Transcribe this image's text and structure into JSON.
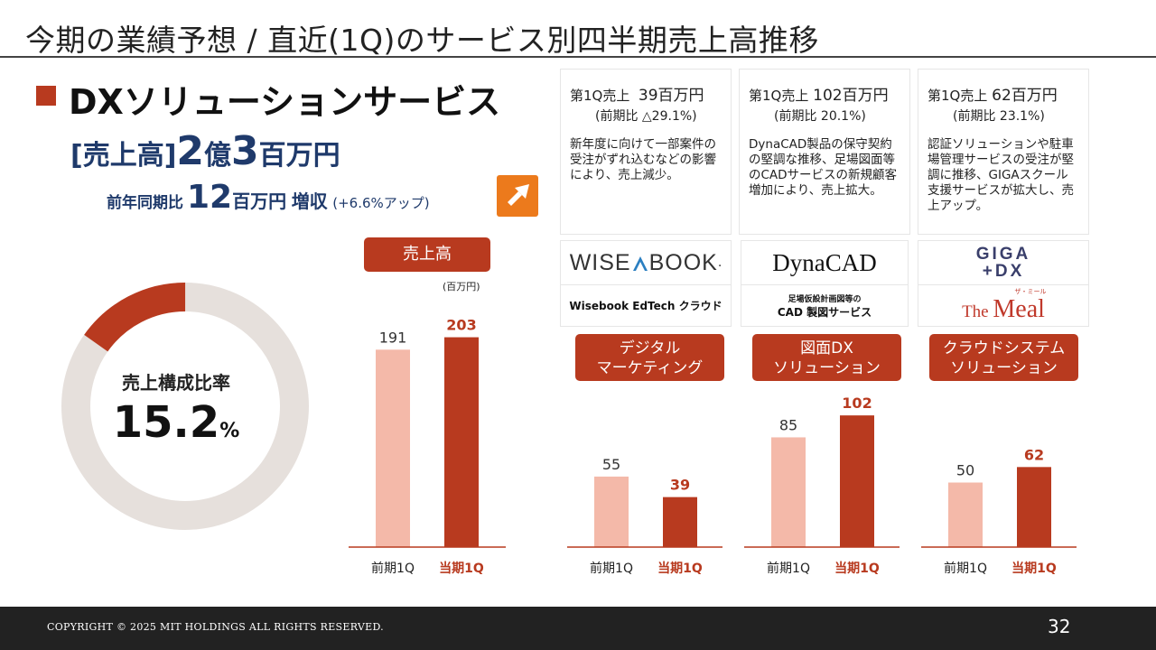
{
  "header": {
    "title": "今期の業績予想 / 直近(1Q)のサービス別四半期売上高推移"
  },
  "section": {
    "title": "DXソリューションサービス",
    "sales_label": "[売上高]",
    "sales_oku": "2",
    "sales_oku_unit": "億",
    "sales_man": "3",
    "sales_man_unit": "百万円",
    "yoy_label": "前年同期比",
    "yoy_value": "12",
    "yoy_unit": "百万円",
    "yoy_word": "増収",
    "yoy_note": "(+6.6%アップ)",
    "arrow_icon": "arrow-up-right-icon"
  },
  "donut": {
    "label": "売上構成比率",
    "value": "15.2",
    "unit": "%",
    "share": 0.152,
    "color_share": "#b83a1f",
    "color_rest": "#e6e0dc"
  },
  "main_chart": {
    "badge": "売上高",
    "unit_label": "(百万円)"
  },
  "info_boxes": [
    {
      "head_prefix": "第1Q売上",
      "head_value": "39百万円",
      "sub": "(前期比 △29.1%)",
      "body": "新年度に向けて一部案件の受注がずれ込むなどの影響により、売上減少。"
    },
    {
      "head_prefix": "第1Q売上",
      "head_value": "102百万円",
      "sub": "(前期比 20.1%)",
      "body": "DynaCAD製品の保守契約の堅調な推移、足場図面等のCADサービスの新規顧客増加により、売上拡大。"
    },
    {
      "head_prefix": "第1Q売上",
      "head_value": "62百万円",
      "sub": "(前期比 23.1%)",
      "body": "認証ソリューションや駐車場管理サービスの受注が堅調に推移、GIGAスクール支援サービスが拡大し、売上アップ。"
    }
  ],
  "logos": [
    {
      "top_a": "WISE",
      "top_b": "BOOK",
      "top_c": ".",
      "bottom": "Wisebook EdTech クラウド"
    },
    {
      "top": "DynaCAD",
      "bottom_1": "足場仮設計画図等の",
      "bottom_2": "CAD 製図サービス"
    },
    {
      "top_1": "GIGA",
      "top_2": "+DX",
      "bottom_a": "The ",
      "bottom_b": "Meal",
      "bottom_small": "ザ・ミール"
    }
  ],
  "categories": [
    {
      "line1": "デジタル",
      "line2": "マーケティング"
    },
    {
      "line1": "図面DX",
      "line2": "ソリューション"
    },
    {
      "line1": "クラウドシステム",
      "line2": "ソリューション"
    }
  ],
  "chart_data": [
    {
      "type": "bar",
      "categories": [
        "前期1Q",
        "当期1Q"
      ],
      "values": [
        191,
        203
      ],
      "ylabel": "",
      "colors": [
        "#f4b9a9",
        "#b83a1f"
      ]
    },
    {
      "type": "bar",
      "categories": [
        "前期1Q",
        "当期1Q"
      ],
      "values": [
        55,
        39
      ],
      "colors": [
        "#f4b9a9",
        "#b83a1f"
      ]
    },
    {
      "type": "bar",
      "categories": [
        "前期1Q",
        "当期1Q"
      ],
      "values": [
        85,
        102
      ],
      "colors": [
        "#f4b9a9",
        "#b83a1f"
      ]
    },
    {
      "type": "bar",
      "categories": [
        "前期1Q",
        "当期1Q"
      ],
      "values": [
        50,
        62
      ],
      "colors": [
        "#f4b9a9",
        "#b83a1f"
      ]
    }
  ],
  "footer": {
    "copyright": "COPYRIGHT © 2025 MIT HOLDINGS ALL RIGHTS RESERVED.",
    "page": "32"
  }
}
